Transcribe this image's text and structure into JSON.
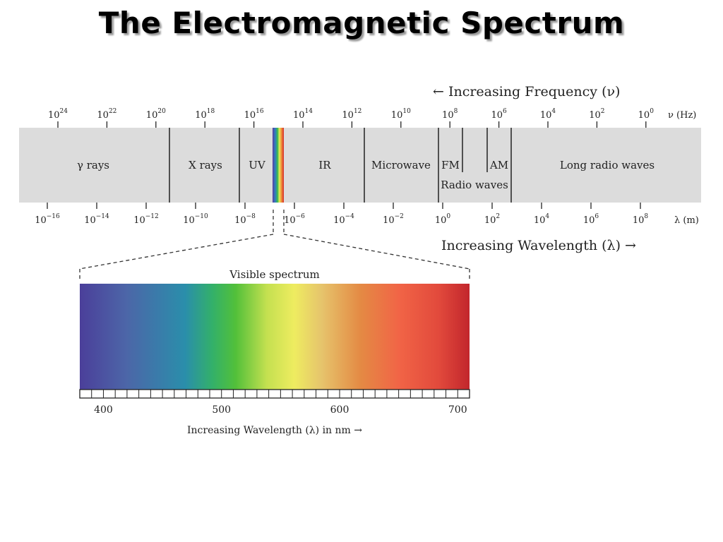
{
  "title": "The Electromagnetic Spectrum",
  "frequency_header": "← Increasing Frequency (ν)",
  "wavelength_header": "Increasing Wavelength (λ) →",
  "frequency_unit": "ν (Hz)",
  "wavelength_unit": "λ (m)",
  "frequency_ticks": [
    {
      "base": "10",
      "exp": "24"
    },
    {
      "base": "10",
      "exp": "22"
    },
    {
      "base": "10",
      "exp": "20"
    },
    {
      "base": "10",
      "exp": "18"
    },
    {
      "base": "10",
      "exp": "16"
    },
    {
      "base": "10",
      "exp": "14"
    },
    {
      "base": "10",
      "exp": "12"
    },
    {
      "base": "10",
      "exp": "10"
    },
    {
      "base": "10",
      "exp": "8"
    },
    {
      "base": "10",
      "exp": "6"
    },
    {
      "base": "10",
      "exp": "4"
    },
    {
      "base": "10",
      "exp": "2"
    },
    {
      "base": "10",
      "exp": "0"
    }
  ],
  "wavelength_ticks": [
    {
      "base": "10",
      "exp": "−16"
    },
    {
      "base": "10",
      "exp": "−14"
    },
    {
      "base": "10",
      "exp": "−12"
    },
    {
      "base": "10",
      "exp": "−10"
    },
    {
      "base": "10",
      "exp": "−8"
    },
    {
      "base": "10",
      "exp": "−6"
    },
    {
      "base": "10",
      "exp": "−4"
    },
    {
      "base": "10",
      "exp": "−2"
    },
    {
      "base": "10",
      "exp": "0"
    },
    {
      "base": "10",
      "exp": "2"
    },
    {
      "base": "10",
      "exp": "4"
    },
    {
      "base": "10",
      "exp": "6"
    },
    {
      "base": "10",
      "exp": "8"
    }
  ],
  "bands": {
    "gamma": "γ rays",
    "xray": "X rays",
    "uv": "UV",
    "ir": "IR",
    "microwave": "Microwave",
    "fm": "FM",
    "am": "AM",
    "long_radio": "Long radio waves",
    "radio_waves": "Radio waves"
  },
  "visible": {
    "title": "Visible spectrum",
    "axis_label": "Increasing Wavelength (λ) in nm →",
    "ticks": [
      "400",
      "500",
      "600",
      "700"
    ],
    "range_nm": [
      380,
      710
    ]
  },
  "colors": {
    "band_fill": "#dcdcdc",
    "line": "#222222",
    "visible_gradient": [
      "#4b3f9a",
      "#3f5fa6",
      "#2f88a8",
      "#2aa39e",
      "#3cb84a",
      "#8fcd45",
      "#e8ea5a",
      "#e8c86a",
      "#e58c45",
      "#ee6040",
      "#e0443a",
      "#c42a2e"
    ]
  }
}
